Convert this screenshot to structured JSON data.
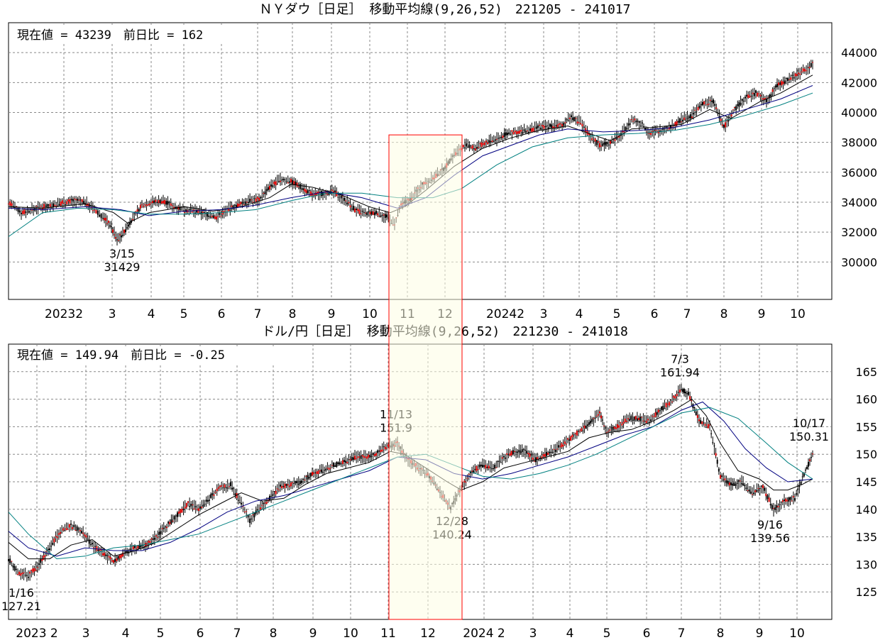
{
  "chart_data": [
    {
      "type": "line",
      "title": "ＮＹダウ［日足］ 移動平均線(9,26,52)　221205 - 241017",
      "status": "現在値 = 43239　前日比 = 162",
      "ylim": [
        27500,
        46000
      ],
      "yticks": [
        30000,
        32000,
        34000,
        36000,
        38000,
        40000,
        42000,
        44000
      ],
      "xlim": [
        0,
        1125
      ],
      "x_tick_labels": [
        {
          "label": "20232",
          "x": 90
        },
        {
          "label": "3",
          "x": 158
        },
        {
          "label": "4",
          "x": 213
        },
        {
          "label": "5",
          "x": 259
        },
        {
          "label": "6",
          "x": 312
        },
        {
          "label": "7",
          "x": 363
        },
        {
          "label": "8",
          "x": 412
        },
        {
          "label": "9",
          "x": 467
        },
        {
          "label": "10",
          "x": 521
        },
        {
          "label": "11",
          "x": 574
        },
        {
          "label": "12",
          "x": 627
        },
        {
          "label": "20242",
          "x": 712
        },
        {
          "label": "3",
          "x": 766
        },
        {
          "label": "4",
          "x": 816
        },
        {
          "label": "5",
          "x": 869
        },
        {
          "label": "6",
          "x": 922
        },
        {
          "label": "7",
          "x": 968
        },
        {
          "label": "8",
          "x": 1020
        },
        {
          "label": "9",
          "x": 1073
        },
        {
          "label": "10",
          "x": 1124
        }
      ],
      "grid": true,
      "highlight": {
        "x_start": 548,
        "x_end": 651,
        "y_top": 38500,
        "color": "#fdfde3",
        "border": "#ff0000"
      },
      "series": [
        {
          "type": "price",
          "color": "#cc0000",
          "x": [
            12,
            30,
            45,
            60,
            75,
            90,
            105,
            120,
            133,
            145,
            155,
            165,
            175,
            185,
            200,
            215,
            230,
            245,
            260,
            275,
            290,
            305,
            320,
            335,
            350,
            365,
            380,
            395,
            410,
            425,
            440,
            455,
            470,
            485,
            500,
            515,
            530,
            545,
            556,
            565,
            580,
            595,
            610,
            625,
            640,
            655,
            670,
            685,
            700,
            715,
            730,
            745,
            760,
            775,
            790,
            805,
            818,
            830,
            845,
            860,
            875,
            890,
            905,
            915,
            930,
            945,
            960,
            975,
            990,
            1005,
            1020,
            1035,
            1050,
            1065,
            1080,
            1095,
            1110,
            1125,
            1145
          ],
          "values": [
            34000,
            33300,
            33500,
            33700,
            33800,
            34000,
            34100,
            34000,
            33500,
            33000,
            32500,
            31500,
            32000,
            32800,
            33800,
            34000,
            34100,
            33700,
            33500,
            33400,
            33200,
            33000,
            33500,
            33800,
            34100,
            34200,
            35000,
            35500,
            35400,
            35000,
            34500,
            34600,
            34700,
            34200,
            33500,
            33200,
            33300,
            33000,
            32500,
            33800,
            34300,
            35200,
            35600,
            36200,
            37200,
            37800,
            37600,
            38000,
            38200,
            38600,
            38700,
            38800,
            39000,
            39100,
            39100,
            39700,
            39300,
            38500,
            37800,
            38000,
            38500,
            39500,
            39200,
            38600,
            38800,
            39000,
            39500,
            39800,
            40600,
            40700,
            39000,
            40200,
            41000,
            41300,
            40800,
            41800,
            42200,
            42600,
            43200
          ]
        },
        {
          "type": "ma9",
          "color": "#000000",
          "x": [
            12,
            60,
            120,
            160,
            180,
            210,
            260,
            300,
            340,
            380,
            410,
            440,
            480,
            520,
            550,
            570,
            600,
            640,
            680,
            720,
            760,
            800,
            830,
            860,
            890,
            920,
            960,
            1000,
            1030,
            1070,
            1100,
            1145
          ],
          "values": [
            33700,
            33600,
            33900,
            33300,
            32600,
            33300,
            33700,
            33400,
            33700,
            34300,
            35200,
            35000,
            34500,
            33700,
            33300,
            33700,
            34800,
            36400,
            37600,
            38300,
            38800,
            39100,
            38600,
            38100,
            38900,
            39000,
            39200,
            40200,
            39600,
            40700,
            41300,
            42500
          ]
        },
        {
          "type": "ma26",
          "color": "#000080",
          "x": [
            12,
            60,
            120,
            170,
            210,
            260,
            310,
            360,
            410,
            460,
            510,
            560,
            600,
            640,
            680,
            720,
            760,
            800,
            850,
            900,
            950,
            1000,
            1050,
            1100,
            1145
          ],
          "values": [
            33600,
            33500,
            33700,
            33500,
            33100,
            33400,
            33500,
            33800,
            34300,
            34700,
            34300,
            33600,
            34300,
            35800,
            37100,
            37800,
            38500,
            38900,
            38700,
            38800,
            39000,
            39500,
            40200,
            40900,
            41800
          ]
        },
        {
          "type": "ma52",
          "color": "#008080",
          "x": [
            12,
            60,
            110,
            160,
            210,
            260,
            310,
            360,
            410,
            460,
            510,
            560,
            610,
            650,
            700,
            750,
            800,
            850,
            900,
            950,
            1000,
            1050,
            1100,
            1145
          ],
          "values": [
            31700,
            33300,
            33600,
            33500,
            33200,
            33200,
            33300,
            33500,
            34100,
            34600,
            34600,
            34300,
            34300,
            34900,
            36500,
            37700,
            38300,
            38500,
            38600,
            38800,
            39200,
            39800,
            40500,
            41300
          ]
        }
      ],
      "annotations": [
        {
          "date": "3/15",
          "value": "31429",
          "x": 172,
          "y": 31429,
          "position": "below"
        }
      ]
    },
    {
      "type": "line",
      "title": "ドル/円［日足］ 移動平均線(9,26,52)　221230 - 241018",
      "status": "現在値 = 149.94　前日比 = -0.25",
      "ylim": [
        120,
        170
      ],
      "yticks": [
        125,
        130,
        135,
        140,
        145,
        150,
        155,
        160,
        165
      ],
      "xlim": [
        0,
        1125
      ],
      "x_tick_labels": [
        {
          "label": "2023 2",
          "x": 52
        },
        {
          "label": "3",
          "x": 121
        },
        {
          "label": "4",
          "x": 177
        },
        {
          "label": "5",
          "x": 226
        },
        {
          "label": "6",
          "x": 282
        },
        {
          "label": "7",
          "x": 334
        },
        {
          "label": "8",
          "x": 385
        },
        {
          "label": "9",
          "x": 441
        },
        {
          "label": "10",
          "x": 494
        },
        {
          "label": "11",
          "x": 547
        },
        {
          "label": "12",
          "x": 603
        },
        {
          "label": "2024 2",
          "x": 682
        },
        {
          "label": "3",
          "x": 751
        },
        {
          "label": "4",
          "x": 803
        },
        {
          "label": "5",
          "x": 855
        },
        {
          "label": "6",
          "x": 911
        },
        {
          "label": "7",
          "x": 960
        },
        {
          "label": "8",
          "x": 1015
        },
        {
          "label": "9",
          "x": 1070
        },
        {
          "label": "10",
          "x": 1123
        }
      ],
      "grid": true,
      "series": [
        {
          "type": "price",
          "color": "#cc0000",
          "x": [
            12,
            25,
            40,
            55,
            70,
            85,
            100,
            115,
            130,
            145,
            160,
            175,
            190,
            205,
            220,
            235,
            250,
            265,
            280,
            295,
            310,
            325,
            340,
            352,
            365,
            380,
            395,
            410,
            425,
            440,
            455,
            470,
            485,
            500,
            515,
            530,
            545,
            560,
            575,
            590,
            605,
            620,
            635,
            650,
            665,
            680,
            695,
            710,
            725,
            740,
            755,
            770,
            785,
            800,
            815,
            830,
            845,
            855,
            870,
            885,
            900,
            915,
            930,
            945,
            960,
            970,
            985,
            1000,
            1015,
            1030,
            1045,
            1060,
            1075,
            1090,
            1105,
            1120,
            1135,
            1145
          ],
          "values": [
            131,
            128.5,
            128,
            130,
            133,
            136,
            137,
            136,
            133.5,
            132,
            130.5,
            132,
            133,
            133.5,
            135,
            137,
            139,
            141,
            140,
            142,
            144,
            144.5,
            141,
            138,
            140,
            142,
            144,
            144.5,
            145,
            146.5,
            147,
            148,
            148.5,
            149.5,
            149.5,
            150,
            151.5,
            151.9,
            149,
            147.5,
            146,
            143,
            140.3,
            144,
            147,
            148,
            147.5,
            149.5,
            150.5,
            150.5,
            149,
            150,
            151,
            152.5,
            154,
            155.5,
            157.5,
            154,
            155,
            156.5,
            156.5,
            156,
            158,
            159.5,
            161.9,
            161,
            156,
            155,
            146,
            144.5,
            145,
            143,
            144,
            140,
            141.5,
            142,
            147,
            150
          ]
        },
        {
          "type": "ma9",
          "color": "#000000",
          "x": [
            12,
            40,
            70,
            100,
            130,
            160,
            190,
            220,
            250,
            280,
            310,
            340,
            370,
            400,
            430,
            460,
            490,
            520,
            550,
            570,
            600,
            630,
            650,
            680,
            710,
            740,
            770,
            800,
            830,
            860,
            890,
            920,
            950,
            975,
            995,
            1015,
            1040,
            1070,
            1090,
            1110,
            1130,
            1145
          ],
          "values": [
            134,
            131,
            131,
            133.5,
            134.5,
            131.5,
            132.5,
            134,
            136.5,
            139,
            141,
            143,
            141.5,
            142,
            144.5,
            146.5,
            147.5,
            148.5,
            150.5,
            150,
            147.5,
            145,
            143.5,
            145,
            147.5,
            148.5,
            149.5,
            150.5,
            153,
            154,
            154.5,
            156,
            158,
            160,
            157,
            152,
            147,
            145.5,
            143.5,
            143.5,
            144.5,
            145.5
          ]
        },
        {
          "type": "ma26",
          "color": "#000080",
          "x": [
            12,
            40,
            80,
            120,
            160,
            200,
            240,
            280,
            320,
            360,
            400,
            440,
            480,
            520,
            560,
            600,
            640,
            680,
            720,
            760,
            800,
            840,
            880,
            920,
            960,
            990,
            1020,
            1050,
            1080,
            1110,
            1145
          ],
          "values": [
            136,
            133,
            131.5,
            133,
            132.5,
            132.5,
            134,
            136.5,
            139.5,
            141.5,
            142.5,
            144,
            145.5,
            147,
            149.5,
            149,
            146.5,
            145.5,
            146.5,
            148,
            149.5,
            151.5,
            153.5,
            155,
            158,
            159.5,
            156,
            151,
            147.5,
            145,
            145.5
          ]
        },
        {
          "type": "ma52",
          "color": "#008080",
          "x": [
            12,
            40,
            80,
            120,
            160,
            200,
            240,
            280,
            320,
            360,
            400,
            440,
            480,
            520,
            560,
            600,
            640,
            680,
            720,
            760,
            800,
            840,
            880,
            920,
            960,
            1000,
            1040,
            1080,
            1110,
            1145
          ],
          "values": [
            139.5,
            135.5,
            131,
            131.5,
            133,
            133.5,
            134.5,
            135.5,
            137.5,
            139.5,
            141.5,
            143.5,
            145.5,
            147.5,
            149.5,
            150,
            148,
            146,
            145.5,
            146.5,
            148,
            150,
            152.5,
            155,
            157.5,
            158.5,
            156.5,
            152,
            148.5,
            145.5
          ]
        }
      ],
      "annotations": [
        {
          "date": "1/16",
          "value": "127.21",
          "x": 30,
          "y": 127.21,
          "position": "below"
        },
        {
          "date": "11/13",
          "value": "151.9",
          "x": 558,
          "y": 151.9,
          "position": "above"
        },
        {
          "date": "12/28",
          "value": "140.24",
          "x": 637,
          "y": 140.24,
          "position": "below"
        },
        {
          "date": "7/3",
          "value": "161.94",
          "x": 958,
          "y": 161.94,
          "position": "above"
        },
        {
          "date": "9/16",
          "value": "139.56",
          "x": 1085,
          "y": 139.56,
          "position": "below"
        },
        {
          "date": "10/17",
          "value": "150.31",
          "x": 1140,
          "y": 150.31,
          "position": "above"
        }
      ]
    }
  ]
}
